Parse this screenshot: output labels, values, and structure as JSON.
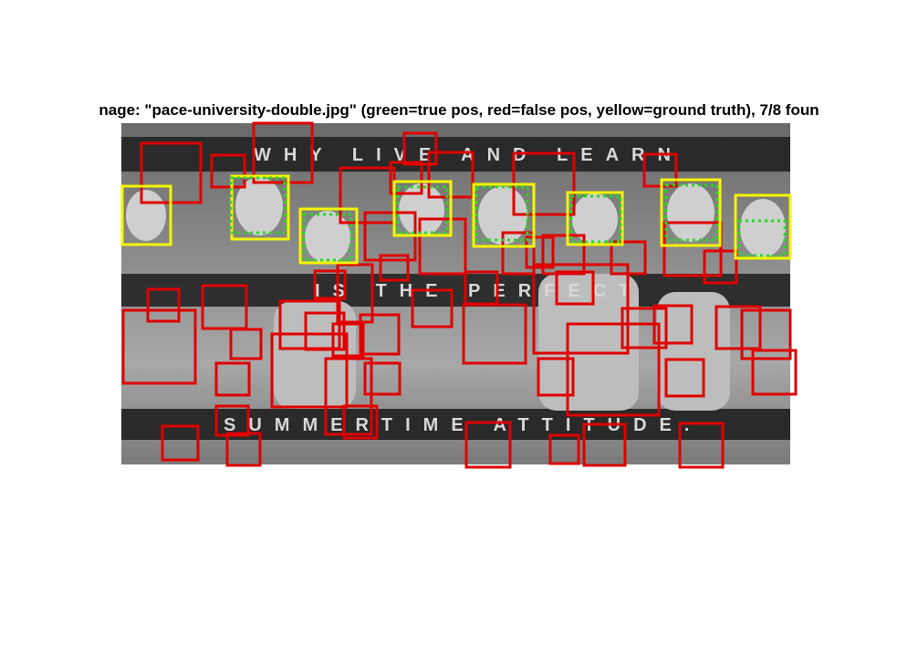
{
  "title": "nage: \"pace-university-double.jpg\" (green=true pos, red=false pos, yellow=ground truth), 7/8 foun",
  "image_text": [
    "WHY LIVE AND LEARN",
    "IS THE PERFECT",
    "SUMMERTIME ATTITUDE."
  ]
}
